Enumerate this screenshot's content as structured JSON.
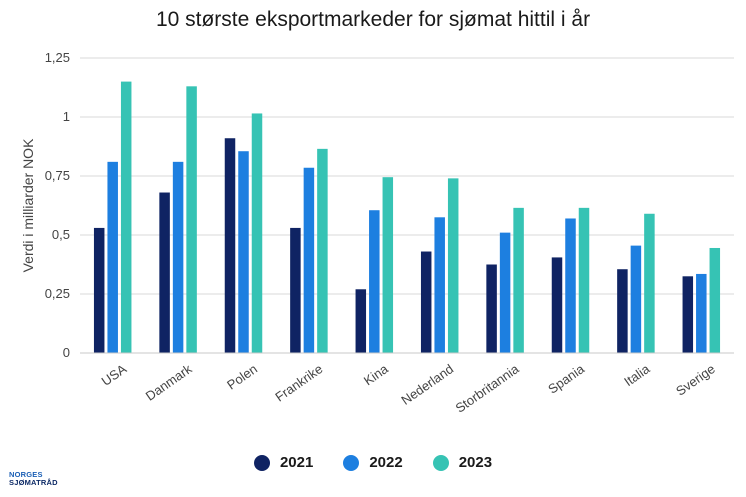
{
  "title": "10 største eksportmarkeder for sjømat hittil i år",
  "logo": {
    "line1": "NORGES",
    "line2": "SJØMATRÅD"
  },
  "colors": {
    "2021": "#0f2363",
    "2022": "#1d7fe0",
    "2023": "#36c3b4",
    "grid": "#d9d9d9"
  },
  "chart_data": {
    "type": "bar",
    "title": "10 største eksportmarkeder for sjømat hittil i år",
    "xlabel": "",
    "ylabel": "Verdi i milliarder NOK",
    "ylim": [
      0,
      1.25
    ],
    "yticks": [
      0,
      0.25,
      0.5,
      0.75,
      1,
      1.25
    ],
    "ytick_labels": [
      "0",
      "0,25",
      "0,5",
      "0,75",
      "1",
      "1,25"
    ],
    "categories": [
      "USA",
      "Danmark",
      "Polen",
      "Frankrike",
      "Kina",
      "Nederland",
      "Storbritannia",
      "Spania",
      "Italia",
      "Sverige"
    ],
    "series": [
      {
        "name": "2021",
        "values": [
          0.53,
          0.68,
          0.91,
          0.53,
          0.27,
          0.43,
          0.375,
          0.405,
          0.355,
          0.325
        ]
      },
      {
        "name": "2022",
        "values": [
          0.81,
          0.81,
          0.855,
          0.785,
          0.605,
          0.575,
          0.51,
          0.57,
          0.455,
          0.335
        ]
      },
      {
        "name": "2023",
        "values": [
          1.15,
          1.13,
          1.015,
          0.865,
          0.745,
          0.74,
          0.615,
          0.615,
          0.59,
          0.445
        ]
      }
    ],
    "grid": true,
    "legend": "bottom-center"
  }
}
